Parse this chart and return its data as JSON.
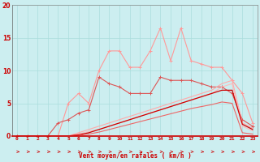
{
  "xlabel": "Vent moyen/en rafales ( km/h )",
  "x": [
    0,
    1,
    2,
    3,
    4,
    5,
    6,
    7,
    8,
    9,
    10,
    11,
    12,
    13,
    14,
    15,
    16,
    17,
    18,
    19,
    20,
    21,
    22,
    23
  ],
  "series": [
    {
      "name": "light_pink_jagged",
      "color": "#FF9999",
      "linewidth": 0.8,
      "marker": "+",
      "markersize": 3,
      "y": [
        0,
        0,
        0,
        0,
        0,
        5.0,
        6.5,
        5.0,
        10.0,
        13.0,
        13.0,
        10.5,
        10.5,
        13.0,
        16.5,
        11.5,
        16.5,
        11.5,
        11.0,
        10.5,
        10.5,
        8.5,
        6.5,
        2.0
      ]
    },
    {
      "name": "medium_red_jagged",
      "color": "#DD5555",
      "linewidth": 0.8,
      "marker": "+",
      "markersize": 3,
      "y": [
        0,
        0,
        0,
        0,
        2.0,
        2.5,
        3.5,
        4.0,
        9.0,
        8.0,
        7.5,
        6.5,
        6.5,
        6.5,
        9.0,
        8.5,
        8.5,
        8.5,
        8.0,
        7.5,
        7.5,
        6.5,
        2.5,
        1.5
      ]
    },
    {
      "name": "light_diagonal1",
      "color": "#FFAAAA",
      "linewidth": 0.8,
      "marker": "",
      "markersize": 0,
      "y": [
        0,
        0,
        0,
        0,
        0,
        0,
        0.5,
        1.0,
        1.5,
        2.0,
        2.5,
        3.0,
        3.5,
        4.0,
        4.5,
        5.0,
        5.5,
        6.0,
        6.5,
        7.0,
        8.0,
        8.5,
        2.0,
        1.2
      ]
    },
    {
      "name": "light_diagonal2",
      "color": "#FFBBBB",
      "linewidth": 0.8,
      "marker": "",
      "markersize": 0,
      "y": [
        0,
        0,
        0,
        0,
        0,
        0,
        0.3,
        0.7,
        1.0,
        1.5,
        2.0,
        2.5,
        3.0,
        3.5,
        4.0,
        4.5,
        5.0,
        5.5,
        6.0,
        6.5,
        7.5,
        8.0,
        1.5,
        0.8
      ]
    },
    {
      "name": "dark_red_diagonal",
      "color": "#CC0000",
      "linewidth": 0.9,
      "marker": "",
      "markersize": 0,
      "y": [
        0,
        0,
        0,
        0,
        0,
        0,
        0.2,
        0.5,
        1.0,
        1.5,
        2.0,
        2.5,
        3.0,
        3.5,
        4.0,
        4.5,
        5.0,
        5.5,
        6.0,
        6.5,
        7.0,
        7.0,
        1.8,
        1.0
      ]
    },
    {
      "name": "medium_diagonal",
      "color": "#EE6666",
      "linewidth": 0.8,
      "marker": "",
      "markersize": 0,
      "y": [
        0,
        0,
        0,
        0,
        0,
        0,
        0.1,
        0.3,
        0.6,
        1.0,
        1.4,
        1.8,
        2.2,
        2.6,
        3.0,
        3.4,
        3.8,
        4.2,
        4.5,
        4.8,
        5.2,
        5.0,
        0.5,
        0.3
      ]
    }
  ],
  "background_color": "#CCEEF0",
  "grid_color": "#AADDDD",
  "text_color": "#CC0000",
  "arrow_color": "#CC0000",
  "ylim": [
    0,
    20
  ],
  "xlim": [
    -0.5,
    23.5
  ],
  "yticks": [
    0,
    5,
    10,
    15,
    20
  ],
  "xticks": [
    0,
    1,
    2,
    3,
    4,
    5,
    6,
    7,
    8,
    9,
    10,
    11,
    12,
    13,
    14,
    15,
    16,
    17,
    18,
    19,
    20,
    21,
    22,
    23
  ]
}
